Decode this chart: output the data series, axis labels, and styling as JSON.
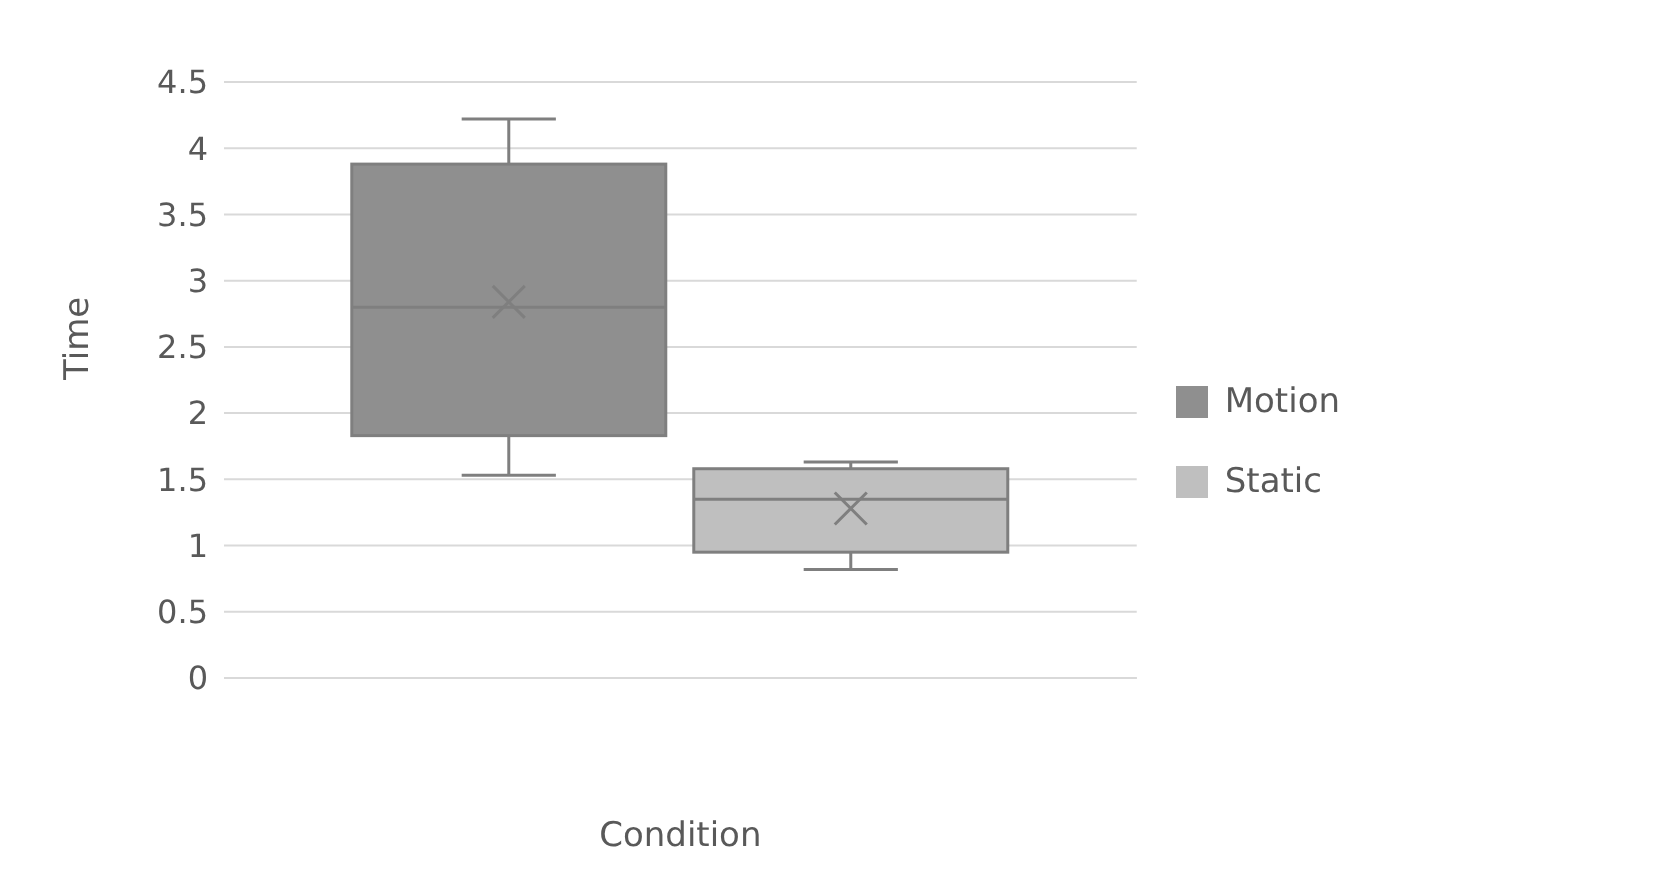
{
  "chart_data": {
    "type": "box",
    "xlabel": "Condition",
    "ylabel": "Time",
    "categories": [
      null
    ],
    "series": [
      {
        "name": "Motion",
        "color": "#8f8f8f",
        "boxes": [
          {
            "low": 1.53,
            "q1": 1.83,
            "median": 2.8,
            "q3": 3.88,
            "high": 4.22,
            "mean": 2.84
          }
        ]
      },
      {
        "name": "Static",
        "color": "#bfbfbf",
        "boxes": [
          {
            "low": 0.82,
            "q1": 0.95,
            "median": 1.35,
            "q3": 1.58,
            "high": 1.63,
            "mean": 1.28
          }
        ]
      }
    ],
    "ylim": [
      0,
      4.5
    ],
    "yticks": [
      0,
      0.5,
      1,
      1.5,
      2,
      2.5,
      3,
      3.5,
      4,
      4.5
    ],
    "grid": "y",
    "legend": "right",
    "marker": "cross",
    "tick_labels": "y"
  }
}
